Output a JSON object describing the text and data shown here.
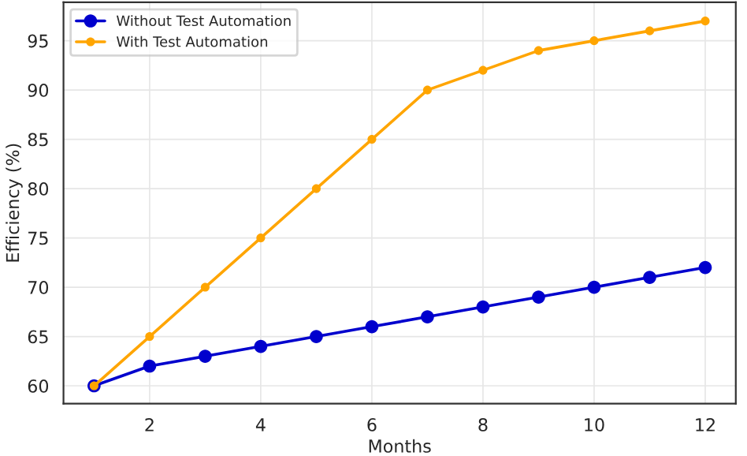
{
  "chart_data": {
    "type": "line",
    "xlabel": "Months",
    "ylabel": "Efficiency (%)",
    "x": [
      1,
      2,
      3,
      4,
      5,
      6,
      7,
      8,
      9,
      10,
      11,
      12
    ],
    "series": [
      {
        "name": "Without Test Automation",
        "color": "#0000cd",
        "values": [
          60,
          62,
          63,
          64,
          65,
          66,
          67,
          68,
          69,
          70,
          71,
          72
        ]
      },
      {
        "name": "With Test Automation",
        "color": "#ffa500",
        "values": [
          60,
          65,
          70,
          75,
          80,
          85,
          90,
          92,
          94,
          95,
          96,
          97
        ]
      }
    ],
    "xlim": [
      0.45,
      12.55
    ],
    "ylim": [
      58.2,
      98.9
    ],
    "xticks": [
      2,
      4,
      6,
      8,
      10,
      12
    ],
    "yticks": [
      60,
      65,
      70,
      75,
      80,
      85,
      90,
      95
    ],
    "grid": true,
    "legend": "top left",
    "marker": "circle",
    "line_style": "solid"
  }
}
